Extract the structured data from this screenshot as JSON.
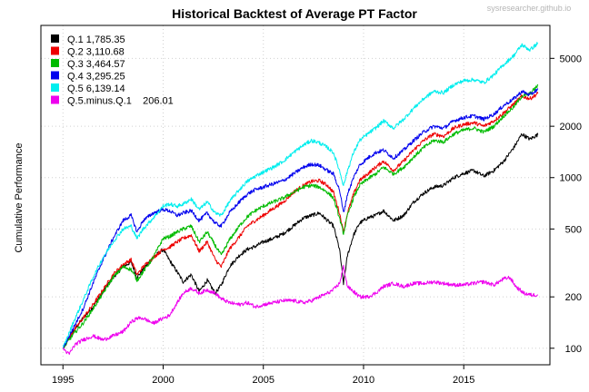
{
  "chart_data": {
    "type": "line",
    "title": "Historical Backtest of Average PT Factor",
    "watermark": "sysresearcher.github.io",
    "xlabel": "",
    "ylabel": "Cumulative Performance",
    "y_scale": "log",
    "xlim": [
      1993.9,
      2019.3
    ],
    "ylim": [
      80,
      7800
    ],
    "x_ticks": [
      1995,
      2000,
      2005,
      2010,
      2015
    ],
    "x_tick_labels": [
      "1995",
      "2000",
      "2005",
      "2010",
      "2015"
    ],
    "y_ticks": [
      100,
      200,
      500,
      1000,
      2000,
      5000
    ],
    "y_tick_labels": [
      "100",
      "200",
      "500",
      "1000",
      "2000",
      "5000"
    ],
    "y_axis_side": "right",
    "grid": true,
    "legend_position": "top-left",
    "series": [
      {
        "name": "Q.1",
        "legend_label": "Q.1 1,785.35",
        "color": "#000000",
        "x": [
          1995.0,
          1995.5,
          1996.0,
          1996.5,
          1997.0,
          1997.5,
          1998.0,
          1998.4,
          1998.7,
          1999.0,
          1999.5,
          2000.0,
          2000.3,
          2000.7,
          2001.0,
          2001.4,
          2001.8,
          2002.2,
          2002.6,
          2002.9,
          2003.3,
          2003.8,
          2004.2,
          2004.6,
          2005.0,
          2005.5,
          2006.0,
          2006.5,
          2007.0,
          2007.4,
          2007.8,
          2008.2,
          2008.5,
          2008.8,
          2009.0,
          2009.2,
          2009.5,
          2009.8,
          2010.2,
          2010.6,
          2011.0,
          2011.5,
          2012.0,
          2012.5,
          2013.0,
          2013.5,
          2014.0,
          2014.5,
          2015.0,
          2015.5,
          2016.0,
          2016.5,
          2017.0,
          2017.5,
          2017.9,
          2018.3,
          2018.7
        ],
        "values": [
          100,
          125,
          150,
          175,
          215,
          260,
          300,
          320,
          260,
          290,
          340,
          380,
          330,
          280,
          245,
          270,
          215,
          250,
          210,
          235,
          300,
          350,
          380,
          395,
          420,
          440,
          470,
          520,
          580,
          600,
          620,
          560,
          520,
          380,
          240,
          350,
          460,
          540,
          580,
          600,
          640,
          560,
          600,
          720,
          810,
          880,
          900,
          1000,
          1060,
          1100,
          1020,
          1100,
          1250,
          1500,
          1800,
          1680,
          1785
        ]
      },
      {
        "name": "Q.2",
        "legend_label": "Q.2 3,110.68",
        "color": "#ee0000",
        "x": [
          1995.0,
          1995.5,
          1996.0,
          1996.5,
          1997.0,
          1997.5,
          1998.0,
          1998.4,
          1998.7,
          1999.0,
          1999.5,
          2000.0,
          2000.3,
          2000.7,
          2001.0,
          2001.4,
          2001.8,
          2002.2,
          2002.6,
          2002.9,
          2003.3,
          2003.8,
          2004.2,
          2004.6,
          2005.0,
          2005.5,
          2006.0,
          2006.5,
          2007.0,
          2007.4,
          2007.8,
          2008.2,
          2008.5,
          2008.8,
          2009.0,
          2009.2,
          2009.5,
          2009.8,
          2010.2,
          2010.6,
          2011.0,
          2011.5,
          2012.0,
          2012.5,
          2013.0,
          2013.5,
          2014.0,
          2014.5,
          2015.0,
          2015.5,
          2016.0,
          2016.5,
          2017.0,
          2017.5,
          2017.9,
          2018.3,
          2018.7
        ],
        "values": [
          100,
          125,
          150,
          180,
          220,
          270,
          310,
          330,
          270,
          300,
          340,
          380,
          390,
          420,
          440,
          460,
          370,
          420,
          330,
          300,
          380,
          450,
          520,
          560,
          600,
          660,
          720,
          820,
          900,
          950,
          960,
          900,
          820,
          620,
          480,
          620,
          800,
          960,
          1050,
          1150,
          1250,
          1100,
          1250,
          1450,
          1650,
          1800,
          1750,
          1950,
          2050,
          2100,
          2000,
          2150,
          2400,
          2700,
          3000,
          2900,
          3110
        ]
      },
      {
        "name": "Q.3",
        "legend_label": "Q.3 3,464.57",
        "color": "#00bb00",
        "x": [
          1995.0,
          1995.5,
          1996.0,
          1996.5,
          1997.0,
          1997.5,
          1998.0,
          1998.4,
          1998.7,
          1999.0,
          1999.5,
          2000.0,
          2000.3,
          2000.7,
          2001.0,
          2001.4,
          2001.8,
          2002.2,
          2002.6,
          2002.9,
          2003.3,
          2003.8,
          2004.2,
          2004.6,
          2005.0,
          2005.5,
          2006.0,
          2006.5,
          2007.0,
          2007.4,
          2007.8,
          2008.2,
          2008.5,
          2008.8,
          2009.0,
          2009.2,
          2009.5,
          2009.8,
          2010.2,
          2010.6,
          2011.0,
          2011.5,
          2012.0,
          2012.5,
          2013.0,
          2013.5,
          2014.0,
          2014.5,
          2015.0,
          2015.5,
          2016.0,
          2016.5,
          2017.0,
          2017.5,
          2017.9,
          2018.3,
          2018.7
        ],
        "values": [
          100,
          120,
          140,
          170,
          210,
          260,
          300,
          290,
          250,
          280,
          340,
          440,
          450,
          480,
          500,
          520,
          420,
          480,
          400,
          350,
          430,
          520,
          590,
          640,
          680,
          720,
          760,
          820,
          880,
          900,
          880,
          820,
          760,
          580,
          470,
          600,
          760,
          900,
          980,
          1050,
          1150,
          1050,
          1150,
          1320,
          1500,
          1650,
          1620,
          1800,
          1900,
          1950,
          1850,
          2000,
          2300,
          2600,
          3000,
          3100,
          3465
        ]
      },
      {
        "name": "Q.4",
        "legend_label": "Q.4 3,295.25",
        "color": "#0000ee",
        "x": [
          1995.0,
          1995.5,
          1996.0,
          1996.5,
          1997.0,
          1997.5,
          1998.0,
          1998.4,
          1998.7,
          1999.0,
          1999.5,
          2000.0,
          2000.3,
          2000.7,
          2001.0,
          2001.4,
          2001.8,
          2002.2,
          2002.6,
          2002.9,
          2003.3,
          2003.8,
          2004.2,
          2004.6,
          2005.0,
          2005.5,
          2006.0,
          2006.5,
          2007.0,
          2007.4,
          2007.8,
          2008.2,
          2008.5,
          2008.8,
          2009.0,
          2009.2,
          2009.5,
          2009.8,
          2010.2,
          2010.6,
          2011.0,
          2011.5,
          2012.0,
          2012.5,
          2013.0,
          2013.5,
          2014.0,
          2014.5,
          2015.0,
          2015.5,
          2016.0,
          2016.5,
          2017.0,
          2017.5,
          2017.9,
          2018.3,
          2018.7
        ],
        "values": [
          100,
          130,
          170,
          240,
          330,
          440,
          560,
          600,
          480,
          560,
          620,
          650,
          640,
          600,
          620,
          640,
          560,
          620,
          540,
          520,
          620,
          720,
          800,
          850,
          880,
          920,
          960,
          1050,
          1150,
          1200,
          1180,
          1100,
          1050,
          850,
          620,
          800,
          1000,
          1180,
          1300,
          1400,
          1450,
          1300,
          1450,
          1650,
          1850,
          2000,
          1950,
          2150,
          2250,
          2300,
          2200,
          2350,
          2650,
          2900,
          3200,
          3050,
          3295
        ]
      },
      {
        "name": "Q.5",
        "legend_label": "Q.5 6,139.14",
        "color": "#00eeee",
        "x": [
          1995.0,
          1995.5,
          1996.0,
          1996.5,
          1997.0,
          1997.5,
          1998.0,
          1998.4,
          1998.7,
          1999.0,
          1999.5,
          2000.0,
          2000.3,
          2000.7,
          2001.0,
          2001.4,
          2001.8,
          2002.2,
          2002.6,
          2002.9,
          2003.3,
          2003.8,
          2004.2,
          2004.6,
          2005.0,
          2005.5,
          2006.0,
          2006.5,
          2007.0,
          2007.4,
          2007.8,
          2008.2,
          2008.5,
          2008.8,
          2009.0,
          2009.2,
          2009.5,
          2009.8,
          2010.2,
          2010.6,
          2011.0,
          2011.5,
          2012.0,
          2012.5,
          2013.0,
          2013.5,
          2014.0,
          2014.5,
          2015.0,
          2015.5,
          2016.0,
          2016.5,
          2017.0,
          2017.5,
          2017.9,
          2018.3,
          2018.7
        ],
        "values": [
          100,
          140,
          190,
          260,
          340,
          420,
          500,
          520,
          440,
          500,
          580,
          680,
          700,
          680,
          700,
          750,
          650,
          720,
          620,
          600,
          720,
          850,
          950,
          1020,
          1080,
          1150,
          1250,
          1400,
          1550,
          1650,
          1600,
          1500,
          1400,
          1100,
          900,
          1100,
          1400,
          1650,
          1800,
          1950,
          2150,
          1950,
          2200,
          2550,
          2900,
          3200,
          3150,
          3500,
          3700,
          3750,
          3600,
          4000,
          4600,
          5200,
          6000,
          5600,
          6139
        ]
      },
      {
        "name": "Q.5.minus.Q.1",
        "legend_label": "Q.5.minus.Q.1    206.01",
        "color": "#ee00ee",
        "x": [
          1995.0,
          1995.3,
          1995.6,
          1996.0,
          1996.5,
          1997.0,
          1997.5,
          1998.0,
          1998.4,
          1998.7,
          1999.0,
          1999.5,
          2000.0,
          2000.3,
          2000.7,
          2001.0,
          2001.4,
          2001.8,
          2002.2,
          2002.6,
          2002.9,
          2003.3,
          2003.8,
          2004.2,
          2004.6,
          2005.0,
          2005.5,
          2006.0,
          2006.5,
          2007.0,
          2007.4,
          2007.8,
          2008.2,
          2008.5,
          2008.8,
          2009.0,
          2009.2,
          2009.5,
          2009.8,
          2010.2,
          2010.6,
          2011.0,
          2011.5,
          2012.0,
          2012.5,
          2013.0,
          2013.5,
          2014.0,
          2014.5,
          2015.0,
          2015.5,
          2016.0,
          2016.5,
          2017.0,
          2017.3,
          2017.6,
          2018.0,
          2018.4,
          2018.7
        ],
        "values": [
          100,
          92,
          105,
          112,
          118,
          112,
          118,
          125,
          142,
          150,
          150,
          140,
          150,
          155,
          185,
          210,
          225,
          210,
          220,
          210,
          195,
          185,
          180,
          185,
          175,
          180,
          185,
          190,
          190,
          185,
          190,
          200,
          210,
          220,
          240,
          300,
          230,
          215,
          200,
          200,
          210,
          230,
          240,
          230,
          240,
          240,
          245,
          240,
          235,
          235,
          240,
          245,
          235,
          255,
          260,
          230,
          210,
          205,
          206
        ]
      }
    ]
  }
}
